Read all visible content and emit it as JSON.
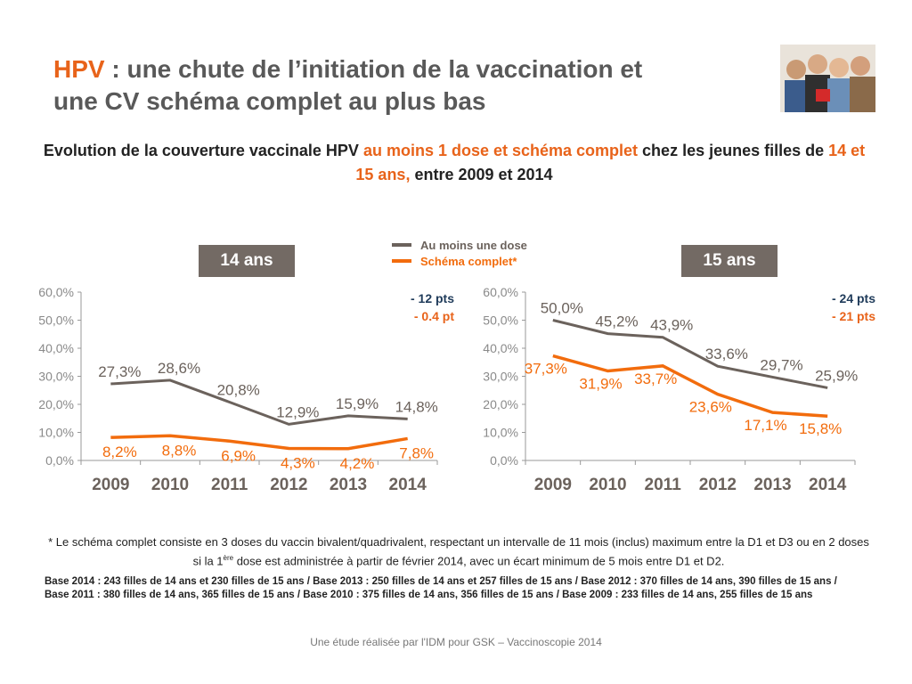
{
  "title": {
    "highlight": "HPV",
    "line1_rest": " : une chute de l’initiation de la vaccination et",
    "line2": "une CV schéma complet au plus bas"
  },
  "subtitle": {
    "p1": "Evolution de la couverture vaccinale HPV ",
    "p2": "au moins 1 dose  et schéma complet",
    "p3": " chez les jeunes filles de ",
    "p4": "14 et 15 ans,",
    "p5": " entre 2009 et 2014"
  },
  "legend": [
    {
      "label": "Au moins une dose",
      "color": "#6b625c"
    },
    {
      "label": "Schéma complet*",
      "color": "#f26c0d"
    }
  ],
  "colors": {
    "accent": "#e8631a",
    "grey_series": "#6b625c",
    "orange_series": "#f26c0d",
    "navy": "#1f3b5a",
    "badge": "#736a64"
  },
  "chart_data": [
    {
      "type": "line",
      "badge": "14 ans",
      "categories": [
        "2009",
        "2010",
        "2011",
        "2012",
        "2013",
        "2014"
      ],
      "ylim": [
        0,
        60
      ],
      "yticks": [
        "0,0%",
        "10,0%",
        "20,0%",
        "30,0%",
        "40,0%",
        "50,0%",
        "60,0%"
      ],
      "series": [
        {
          "name": "Au moins une dose",
          "values": [
            27.3,
            28.6,
            20.8,
            12.9,
            15.9,
            14.8
          ],
          "labels": [
            "27,3%",
            "28,6%",
            "20,8%",
            "12,9%",
            "15,9%",
            "14,8%"
          ]
        },
        {
          "name": "Schéma complet*",
          "values": [
            8.2,
            8.8,
            6.9,
            4.3,
            4.2,
            7.8
          ],
          "labels": [
            "8,2%",
            "8,8%",
            "6,9%",
            "4,3%",
            "4,2%",
            "7,8%"
          ]
        }
      ],
      "annotations": [
        "- 12 pts",
        "- 0.4 pt"
      ]
    },
    {
      "type": "line",
      "badge": "15 ans",
      "categories": [
        "2009",
        "2010",
        "2011",
        "2012",
        "2013",
        "2014"
      ],
      "ylim": [
        0,
        60
      ],
      "yticks": [
        "0,0%",
        "10,0%",
        "20,0%",
        "30,0%",
        "40,0%",
        "50,0%",
        "60,0%"
      ],
      "series": [
        {
          "name": "Au moins une dose",
          "values": [
            50.0,
            45.2,
            43.9,
            33.6,
            29.7,
            25.9
          ],
          "labels": [
            "50,0%",
            "45,2%",
            "43,9%",
            "33,6%",
            "29,7%",
            "25,9%"
          ]
        },
        {
          "name": "Schéma complet*",
          "values": [
            37.3,
            31.9,
            33.7,
            23.6,
            17.1,
            15.8
          ],
          "labels": [
            "37,3%",
            "31,9%",
            "33,7%",
            "23,6%",
            "17,1%",
            "15,8%"
          ]
        }
      ],
      "annotations": [
        "- 24 pts",
        "- 21 pts"
      ]
    }
  ],
  "note": {
    "p1": "* Le schéma complet consiste en 3 doses du vaccin bivalent/quadrivalent, respectant un intervalle de 11 mois (inclus) maximum entre la D1 et D3 ou en 2 doses si la 1",
    "sup": "ère",
    "p2": " dose est administrée à partir de février 2014, avec un écart minimum de 5 mois entre D1 et D2."
  },
  "base": "Base 2014 : 243 filles de 14 ans et 230 filles de 15 ans / Base 2013 : 250 filles de 14 ans et 257 filles de 15 ans / Base  2012 : 370 filles de 14 ans, 390 filles de 15 ans / Base  2011 : 380 filles de 14 ans, 365 filles de 15 ans / Base 2010 : 375 filles de 14 ans, 356 filles de 15 ans / Base  2009 : 233 filles de 14 ans, 255 filles de 15 ans",
  "footer": "Une étude réalisée par l'IDM pour GSK – Vaccinoscopie 2014"
}
